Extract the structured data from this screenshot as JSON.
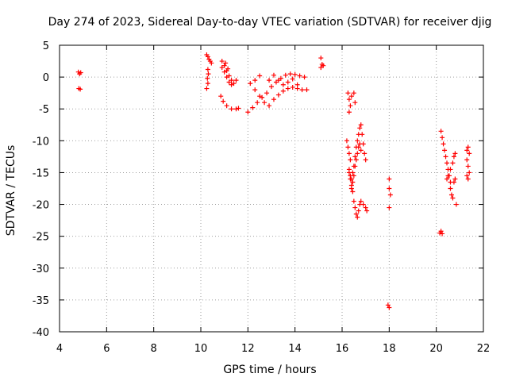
{
  "chart_data": {
    "type": "scatter",
    "title": "Day 274 of 2023, Sidereal Day-to-day VTEC variation (SDTVAR) for receiver djig",
    "xlabel": "GPS time / hours",
    "ylabel": "SDTVAR / TECUs",
    "xlim": [
      4,
      22
    ],
    "ylim": [
      -40,
      5
    ],
    "xticks": [
      4,
      6,
      8,
      10,
      12,
      14,
      16,
      18,
      20,
      22
    ],
    "yticks": [
      5,
      0,
      -5,
      -10,
      -15,
      -20,
      -25,
      -30,
      -35,
      -40
    ],
    "grid": true,
    "marker": "plus",
    "color": "#ff0000",
    "series": [
      {
        "name": "SDTVAR",
        "points": [
          [
            4.8,
            0.8
          ],
          [
            4.85,
            0.5
          ],
          [
            4.9,
            0.7
          ],
          [
            4.82,
            -1.8
          ],
          [
            4.88,
            -1.9
          ],
          [
            10.25,
            3.5
          ],
          [
            10.3,
            3.2
          ],
          [
            10.35,
            2.8
          ],
          [
            10.4,
            2.5
          ],
          [
            10.45,
            2.2
          ],
          [
            10.3,
            1.2
          ],
          [
            10.32,
            0.5
          ],
          [
            10.28,
            -0.2
          ],
          [
            10.3,
            -1.0
          ],
          [
            10.25,
            -1.8
          ],
          [
            10.9,
            2.5
          ],
          [
            11.0,
            1.8
          ],
          [
            11.1,
            1.0
          ],
          [
            11.2,
            0.2
          ],
          [
            11.3,
            -0.5
          ],
          [
            11.4,
            -1.0
          ],
          [
            11.5,
            -0.5
          ],
          [
            11.05,
            2.2
          ],
          [
            11.15,
            1.3
          ],
          [
            10.85,
            -3.0
          ],
          [
            10.95,
            -3.8
          ],
          [
            11.1,
            -4.5
          ],
          [
            11.3,
            -5.0
          ],
          [
            11.5,
            -5.0
          ],
          [
            11.6,
            -4.9
          ],
          [
            10.9,
            1.5
          ],
          [
            11.0,
            0.8
          ],
          [
            11.1,
            0.0
          ],
          [
            11.2,
            -0.8
          ],
          [
            11.3,
            -1.2
          ],
          [
            12.0,
            -5.5
          ],
          [
            12.2,
            -4.8
          ],
          [
            12.4,
            -4.0
          ],
          [
            12.6,
            -3.2
          ],
          [
            12.8,
            -2.5
          ],
          [
            13.0,
            -1.5
          ],
          [
            13.2,
            -0.8
          ],
          [
            13.4,
            -0.2
          ],
          [
            13.6,
            0.3
          ],
          [
            13.8,
            0.5
          ],
          [
            14.0,
            0.4
          ],
          [
            14.2,
            0.2
          ],
          [
            14.4,
            0.0
          ],
          [
            12.1,
            -1.0
          ],
          [
            12.3,
            -0.5
          ],
          [
            12.5,
            0.2
          ],
          [
            12.3,
            -2.0
          ],
          [
            12.5,
            -3.0
          ],
          [
            12.7,
            -4.0
          ],
          [
            12.9,
            -4.5
          ],
          [
            13.1,
            -3.5
          ],
          [
            13.3,
            -2.8
          ],
          [
            13.5,
            -2.2
          ],
          [
            13.7,
            -1.8
          ],
          [
            13.9,
            -1.6
          ],
          [
            14.1,
            -1.8
          ],
          [
            14.3,
            -2.0
          ],
          [
            14.5,
            -2.0
          ],
          [
            12.9,
            -0.5
          ],
          [
            13.1,
            0.3
          ],
          [
            13.3,
            -0.5
          ],
          [
            13.5,
            -1.2
          ],
          [
            13.7,
            -0.8
          ],
          [
            13.9,
            -0.3
          ],
          [
            14.1,
            -1.2
          ],
          [
            15.1,
            3.0
          ],
          [
            15.15,
            2.0
          ],
          [
            15.1,
            1.5
          ],
          [
            15.2,
            1.8
          ],
          [
            16.25,
            -2.5
          ],
          [
            16.3,
            -3.5
          ],
          [
            16.35,
            -4.5
          ],
          [
            16.3,
            -5.5
          ],
          [
            16.4,
            -3.0
          ],
          [
            16.5,
            -2.5
          ],
          [
            16.55,
            -4.0
          ],
          [
            16.2,
            -10.0
          ],
          [
            16.25,
            -11.0
          ],
          [
            16.3,
            -12.0
          ],
          [
            16.35,
            -13.0
          ],
          [
            16.3,
            -14.5
          ],
          [
            16.35,
            -15.5
          ],
          [
            16.4,
            -16.0
          ],
          [
            16.45,
            -15.0
          ],
          [
            16.5,
            -14.0
          ],
          [
            16.55,
            -12.5
          ],
          [
            16.6,
            -11.0
          ],
          [
            16.65,
            -10.0
          ],
          [
            16.7,
            -9.0
          ],
          [
            16.75,
            -8.0
          ],
          [
            16.8,
            -7.5
          ],
          [
            16.85,
            -9.0
          ],
          [
            16.9,
            -10.5
          ],
          [
            16.95,
            -12.0
          ],
          [
            17.0,
            -13.0
          ],
          [
            16.45,
            -18.0
          ],
          [
            16.5,
            -19.5
          ],
          [
            16.55,
            -20.5
          ],
          [
            16.6,
            -21.5
          ],
          [
            16.65,
            -22.0
          ],
          [
            16.7,
            -21.0
          ],
          [
            16.75,
            -20.0
          ],
          [
            16.8,
            -19.5
          ],
          [
            16.9,
            -20.0
          ],
          [
            17.0,
            -20.5
          ],
          [
            17.05,
            -21.0
          ],
          [
            16.4,
            -17.0
          ],
          [
            16.45,
            -16.5
          ],
          [
            16.5,
            -15.5
          ],
          [
            16.55,
            -14.0
          ],
          [
            16.6,
            -13.0
          ],
          [
            16.65,
            -12.0
          ],
          [
            16.7,
            -11.0
          ],
          [
            16.75,
            -10.5
          ],
          [
            16.8,
            -11.5
          ],
          [
            16.3,
            -15.0
          ],
          [
            16.35,
            -16.0
          ],
          [
            16.4,
            -17.5
          ],
          [
            18.0,
            -16.0
          ],
          [
            18.0,
            -17.5
          ],
          [
            18.05,
            -18.5
          ],
          [
            18.0,
            -20.5
          ],
          [
            17.95,
            -35.8
          ],
          [
            18.0,
            -36.2
          ],
          [
            20.2,
            -8.5
          ],
          [
            20.25,
            -9.5
          ],
          [
            20.3,
            -10.5
          ],
          [
            20.35,
            -11.5
          ],
          [
            20.4,
            -12.5
          ],
          [
            20.45,
            -13.5
          ],
          [
            20.5,
            -14.5
          ],
          [
            20.55,
            -15.5
          ],
          [
            20.6,
            -16.5
          ],
          [
            20.6,
            -17.5
          ],
          [
            20.65,
            -18.5
          ],
          [
            20.7,
            -19.0
          ],
          [
            20.45,
            -16.0
          ],
          [
            20.5,
            -15.5
          ],
          [
            20.6,
            -14.5
          ],
          [
            20.7,
            -13.5
          ],
          [
            20.75,
            -12.5
          ],
          [
            20.8,
            -12.0
          ],
          [
            20.75,
            -16.5
          ],
          [
            20.8,
            -16.0
          ],
          [
            20.85,
            -20.0
          ],
          [
            21.3,
            -11.5
          ],
          [
            21.35,
            -11.0
          ],
          [
            21.4,
            -12.0
          ],
          [
            21.3,
            -13.0
          ],
          [
            21.35,
            -14.0
          ],
          [
            21.3,
            -15.5
          ],
          [
            21.35,
            -16.0
          ],
          [
            21.4,
            -15.0
          ],
          [
            20.15,
            -24.5
          ],
          [
            20.2,
            -24.2
          ],
          [
            20.25,
            -24.6
          ]
        ]
      }
    ]
  }
}
